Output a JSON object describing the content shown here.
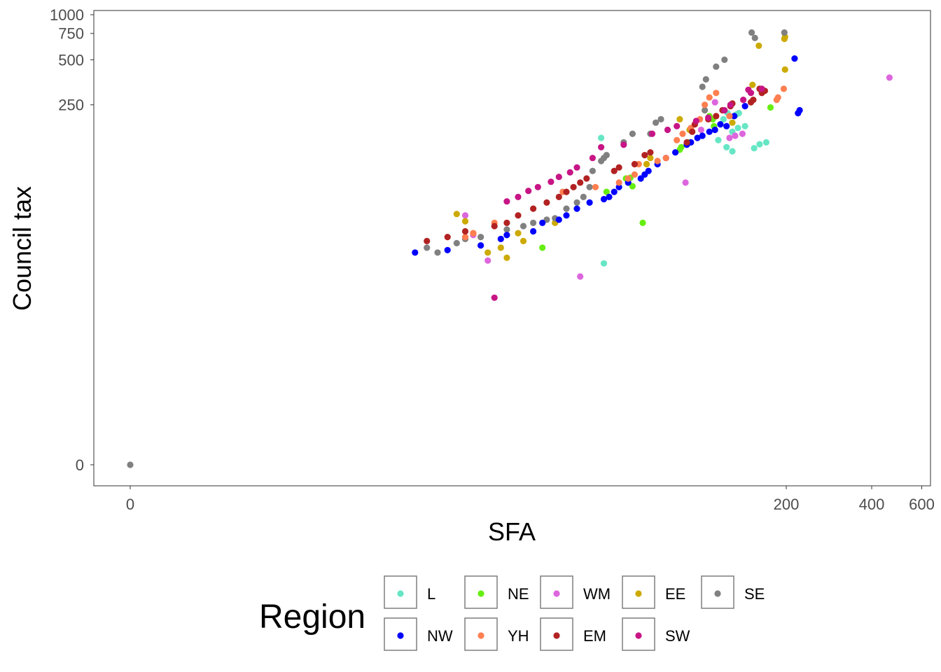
{
  "chart_data": {
    "type": "scatter",
    "xlabel": "SFA",
    "ylabel": "Council tax",
    "x_scale": "pseudo-log",
    "y_scale": "pseudo-log",
    "x_ticks": [
      0,
      200,
      400,
      600
    ],
    "y_ticks": [
      0,
      250,
      500,
      750,
      1000
    ],
    "grid": false,
    "legend": {
      "title": "Region",
      "position": "bottom",
      "entries": [
        {
          "name": "L",
          "color": "#66e6c4"
        },
        {
          "name": "NE",
          "color": "#66ee11"
        },
        {
          "name": "WM",
          "color": "#dd66dd"
        },
        {
          "name": "EE",
          "color": "#ccaa00"
        },
        {
          "name": "SE",
          "color": "#808080"
        },
        {
          "name": "NW",
          "color": "#0000ff"
        },
        {
          "name": "YH",
          "color": "#ff7f50"
        },
        {
          "name": "EM",
          "color": "#b22222"
        },
        {
          "name": "SW",
          "color": "#c71585"
        }
      ]
    },
    "series": [
      {
        "name": "L",
        "color": "#66e6c4",
        "x": [
          135,
          44,
          170,
          161,
          154,
          129,
          136,
          133,
          143,
          129,
          124,
          123,
          115,
          120,
          45
        ],
        "y": [
          175,
          150,
          140,
          136,
          128,
          122,
          220,
          215,
          180,
          165,
          220,
          130,
          145,
          200,
          21
        ]
      },
      {
        "name": "NE",
        "color": "#66ee11",
        "x": [
          176,
          107,
          110,
          111,
          91,
          85,
          84,
          54,
          62,
          46,
          56,
          57,
          27
        ],
        "y": [
          240,
          210,
          200,
          180,
          140,
          130,
          125,
          80,
          40,
          65,
          81,
          71,
          27
        ]
      },
      {
        "name": "WM",
        "color": "#dd66dd",
        "x": [
          462,
          140,
          112,
          100,
          132,
          126,
          88,
          37,
          14,
          15,
          17
        ],
        "y": [
          380,
          160,
          260,
          170,
          155,
          150,
          75,
          17,
          45,
          33,
          22
        ]
      },
      {
        "name": "EE",
        "color": "#ccaa00",
        "x": [
          198,
          197,
          198,
          160,
          152,
          129,
          84,
          91,
          66,
          64,
          55,
          30,
          23,
          22,
          20,
          19,
          15,
          14,
          13,
          17
        ],
        "y": [
          710,
          690,
          430,
          620,
          340,
          190,
          200,
          170,
          110,
          100,
          75,
          40,
          30,
          34,
          23,
          27,
          34,
          41,
          46,
          25
        ]
      },
      {
        "name": "SE",
        "color": "#808080",
        "x": [
          151,
          155,
          197,
          121,
          113,
          104,
          101,
          103,
          72,
          69,
          66,
          57,
          53,
          46,
          45,
          44,
          41,
          40,
          38,
          36,
          33,
          30,
          28,
          25,
          23,
          20,
          16,
          14,
          13,
          10,
          11,
          0
        ],
        "y": [
          760,
          700,
          760,
          500,
          450,
          370,
          330,
          230,
          200,
          190,
          160,
          160,
          140,
          115,
          110,
          105,
          90,
          70,
          60,
          55,
          50,
          43,
          42,
          40,
          38,
          36,
          32,
          31,
          29,
          27,
          25,
          0
        ]
      },
      {
        "name": "NW",
        "color": "#0000ff",
        "x": [
          214,
          223,
          220,
          143,
          131,
          123,
          117,
          112,
          107,
          101,
          97,
          92,
          89,
          81,
          75,
          70,
          65,
          63,
          61,
          55,
          51,
          49,
          47,
          45,
          40,
          36,
          33,
          31,
          27,
          25,
          20,
          19,
          16,
          12,
          9
        ],
        "y": [
          510,
          230,
          220,
          245,
          210,
          180,
          185,
          170,
          165,
          155,
          150,
          140,
          135,
          120,
          110,
          100,
          90,
          85,
          80,
          75,
          70,
          65,
          60,
          58,
          55,
          50,
          45,
          42,
          40,
          35,
          33,
          31,
          28,
          26,
          25
        ]
      },
      {
        "name": "YH",
        "color": "#ff7f50",
        "x": [
          196,
          187,
          185,
          126,
          113,
          107,
          103,
          99,
          92,
          86,
          82,
          75,
          70,
          60,
          58,
          55,
          51,
          42,
          32,
          18,
          15,
          14
        ],
        "y": [
          320,
          280,
          270,
          210,
          300,
          280,
          250,
          200,
          175,
          160,
          145,
          110,
          105,
          100,
          85,
          80,
          75,
          70,
          65,
          40,
          34,
          32
        ]
      },
      {
        "name": "EM",
        "color": "#b22222",
        "x": [
          168,
          161,
          166,
          164,
          153,
          150,
          129,
          127,
          119,
          113,
          106,
          95,
          93,
          89,
          66,
          63,
          58,
          51,
          49,
          39,
          37,
          35,
          33,
          31,
          28,
          25,
          22,
          20,
          18,
          14,
          12,
          10
        ],
        "y": [
          310,
          320,
          310,
          300,
          270,
          260,
          255,
          245,
          230,
          210,
          200,
          185,
          165,
          140,
          120,
          115,
          100,
          95,
          90,
          80,
          75,
          70,
          65,
          60,
          55,
          50,
          45,
          40,
          38,
          35,
          32,
          30
        ]
      },
      {
        "name": "SW",
        "color": "#c71585",
        "x": [
          164,
          147,
          150,
          141,
          127,
          121,
          106,
          96,
          82,
          76,
          67,
          53,
          44,
          41,
          36,
          34,
          31,
          29,
          26,
          24,
          22,
          20,
          18
        ],
        "y": [
          320,
          315,
          300,
          270,
          250,
          230,
          205,
          195,
          180,
          170,
          160,
          135,
          130,
          110,
          95,
          88,
          82,
          76,
          70,
          66,
          60,
          56,
          12
        ]
      }
    ]
  }
}
